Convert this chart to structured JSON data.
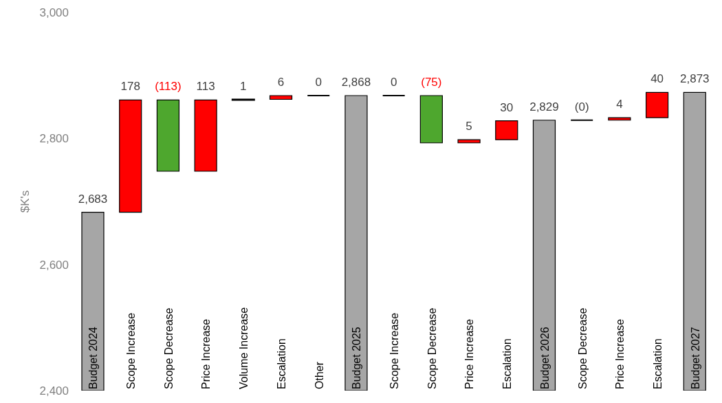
{
  "chart_data": {
    "type": "bar",
    "ylabel": "$K's",
    "categories": [
      "Budget 2024",
      "Scope Increase",
      "Scope Decrease",
      "Price Increase",
      "Volume Increase",
      "Escalation",
      "Other",
      "Budget 2025",
      "Scope Increase",
      "Scope Decrease",
      "Price Increase",
      "Escalation",
      "Budget 2026",
      "Scope Decrease",
      "Price Increase",
      "Escalation",
      "Budget 2027"
    ],
    "values": [
      2683,
      178,
      -113,
      113,
      1,
      6,
      0,
      2868,
      0,
      -75,
      5,
      30,
      2829,
      0,
      4,
      40,
      2873
    ],
    "base": [
      null,
      2683,
      2861,
      2748,
      2861,
      2862,
      2868,
      null,
      2868,
      2868,
      2793,
      2798,
      null,
      2829,
      2829,
      2833,
      null
    ],
    "value_labels": [
      "2,683",
      "178",
      "(113)",
      "113",
      "1",
      "6",
      "0",
      "2,868",
      "0",
      "(75)",
      "5",
      "30",
      "2,829",
      "(0)",
      "4",
      "40",
      "2,873"
    ],
    "colors": [
      "#a6a6a6",
      "#ff0000",
      "#4ea72e",
      "#ff0000",
      "#ff0000",
      "#ff0000",
      "#000000",
      "#a6a6a6",
      "#000000",
      "#4ea72e",
      "#ff0000",
      "#ff0000",
      "#a6a6a6",
      "#000000",
      "#ff0000",
      "#ff0000",
      "#a6a6a6"
    ],
    "ylim": [
      2400,
      3000
    ],
    "yticks": [
      {
        "value": 2400,
        "label": "2,400"
      },
      {
        "value": 2600,
        "label": "2,600"
      },
      {
        "value": 2800,
        "label": "2,800"
      },
      {
        "value": 3000,
        "label": "3,000"
      }
    ],
    "grid": false,
    "legend": false
  }
}
